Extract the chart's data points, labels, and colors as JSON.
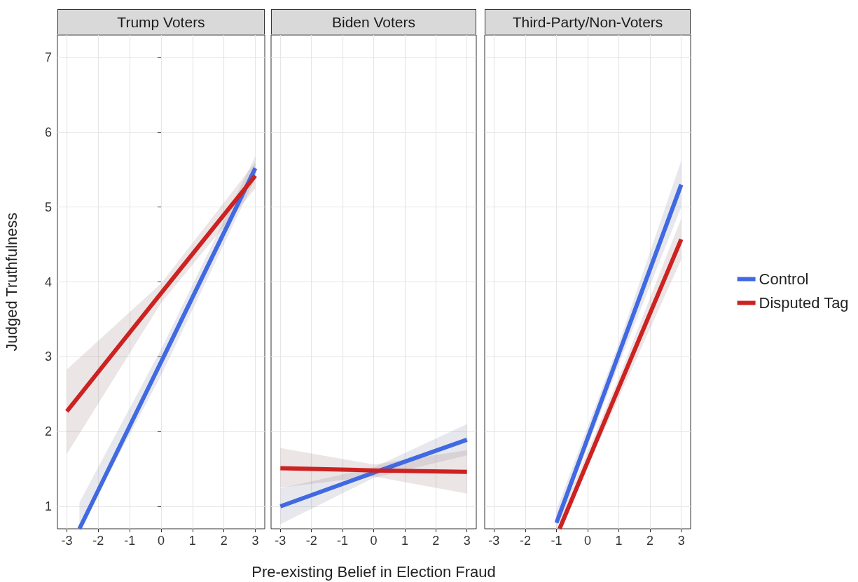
{
  "chart_data": [
    {
      "type": "line",
      "title": "Trump Voters",
      "ylabel": "Judged Truthfulness",
      "xlim": [
        -3.3,
        3.3
      ],
      "xticks": [
        -3,
        -2,
        -1,
        0,
        1,
        2,
        3
      ],
      "ylim": [
        0.7,
        7.3
      ],
      "yticks": [
        1,
        2,
        3,
        4,
        5,
        6,
        7
      ],
      "grid": true,
      "legend": false,
      "series": [
        {
          "color": "#4169e1",
          "x": [
            -2.6,
            0,
            3
          ],
          "values": [
            0.7,
            2.93,
            5.52
          ],
          "lower": [
            0.7,
            2.75,
            5.38
          ],
          "upper": [
            1.05,
            3.1,
            5.68
          ]
        },
        {
          "color": "#cc2222",
          "x": [
            -3,
            0,
            3
          ],
          "values": [
            2.27,
            3.85,
            5.42
          ],
          "lower": [
            1.7,
            3.72,
            5.25
          ],
          "upper": [
            2.83,
            3.98,
            5.6
          ]
        }
      ]
    },
    {
      "type": "line",
      "title": "Biden Voters",
      "xlabel": "Pre-existing Belief in Election Fraud",
      "xlim": [
        -3.3,
        3.3
      ],
      "xticks": [
        -3,
        -2,
        -1,
        0,
        1,
        2,
        3
      ],
      "ylim": [
        0.7,
        7.3
      ],
      "yticks": [
        1,
        2,
        3,
        4,
        5,
        6,
        7
      ],
      "tick_labels": "x",
      "grid": true,
      "legend": false,
      "series": [
        {
          "color": "#4169e1",
          "x": [
            -3,
            0,
            3
          ],
          "values": [
            1.0,
            1.45,
            1.89
          ],
          "lower": [
            0.76,
            1.38,
            1.68
          ],
          "upper": [
            1.24,
            1.52,
            2.1
          ]
        },
        {
          "color": "#cc2222",
          "x": [
            -3,
            0,
            3
          ],
          "values": [
            1.51,
            1.48,
            1.46
          ],
          "lower": [
            1.25,
            1.4,
            1.17
          ],
          "upper": [
            1.78,
            1.56,
            1.75
          ]
        }
      ]
    },
    {
      "type": "line",
      "title": "Third-Party/Non-Voters",
      "xlim": [
        -3.3,
        3.3
      ],
      "xticks": [
        -3,
        -2,
        -1,
        0,
        1,
        2,
        3
      ],
      "ylim": [
        0.7,
        7.3
      ],
      "yticks": [
        1,
        2,
        3,
        4,
        5,
        6,
        7
      ],
      "tick_labels": "x",
      "grid": true,
      "legend": "right",
      "series": [
        {
          "name": "Control",
          "color": "#4169e1",
          "x": [
            -1,
            1,
            3
          ],
          "values": [
            0.78,
            3.04,
            5.3
          ],
          "lower": [
            0.7,
            2.9,
            5.0
          ],
          "upper": [
            0.95,
            3.18,
            5.62
          ]
        },
        {
          "name": "Disputed Tag",
          "color": "#cc2222",
          "x": [
            -0.9,
            1,
            3
          ],
          "values": [
            0.7,
            2.59,
            4.57
          ],
          "lower": [
            0.7,
            2.45,
            4.3
          ],
          "upper": [
            0.85,
            2.72,
            4.85
          ]
        }
      ]
    }
  ]
}
